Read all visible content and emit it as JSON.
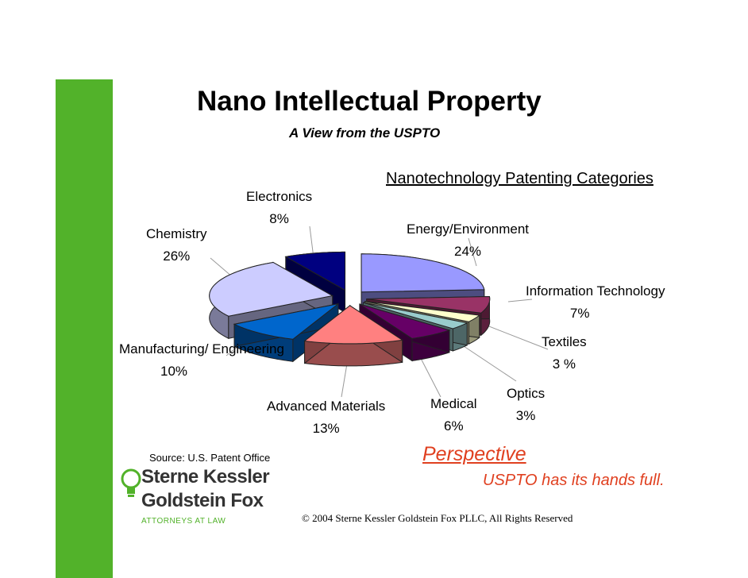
{
  "slide": {
    "title": "Nano Intellectual Property",
    "subtitle": "A View from the USPTO",
    "source": "Source:  U.S. Patent Office",
    "perspective": "Perspective",
    "tagline": "USPTO has its hands full.",
    "copyright": "© 2004 Sterne Kessler Goldstein Fox PLLC, All Rights Reserved",
    "accent_color": "#52b22a",
    "highlight_color": "#e04020"
  },
  "logo": {
    "line1": "Sterne Kessler",
    "line2": "Goldstein Fox",
    "line3": "ATTORNEYS AT LAW"
  },
  "chart_data": {
    "type": "pie",
    "title": "Nanotechnology Patenting Categories",
    "slices": [
      {
        "label": "Energy/Environment",
        "value_label": "24%",
        "value": 24,
        "color": "#9999ff"
      },
      {
        "label": "Information Technology",
        "value_label": "7%",
        "value": 7,
        "color": "#993366"
      },
      {
        "label": "Textiles",
        "value_label": "3 %",
        "value": 3,
        "color": "#ffffcc"
      },
      {
        "label": "Optics",
        "value_label": "3%",
        "value": 3,
        "color": "#99cccc"
      },
      {
        "label": "Medical",
        "value_label": "6%",
        "value": 6,
        "color": "#660066"
      },
      {
        "label": "Advanced Materials",
        "value_label": "13%",
        "value": 13,
        "color": "#ff8080"
      },
      {
        "label": "Manufacturing/ Engineering",
        "value_label": "10%",
        "value": 10,
        "color": "#0066cc"
      },
      {
        "label": "Chemistry",
        "value_label": "26%",
        "value": 26,
        "color": "#ccccff"
      },
      {
        "label": "Electronics",
        "value_label": "8%",
        "value": 8,
        "color": "#000080"
      }
    ]
  }
}
